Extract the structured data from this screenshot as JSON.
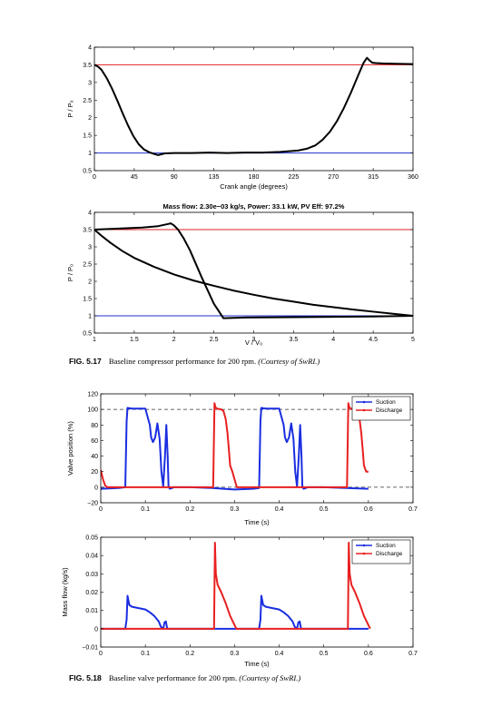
{
  "figures": [
    {
      "label": "FIG. 5.17",
      "caption_text": "Baseline compressor performance for 200 rpm.",
      "caption_courtesy": "(Courtesy of SwRI.)"
    },
    {
      "label": "FIG. 5.18",
      "caption_text": "Baseline valve performance for 200 rpm.",
      "caption_courtesy": "(Courtesy of SwRI.)"
    }
  ],
  "chart_data": [
    {
      "id": "p_vs_crank",
      "type": "line",
      "title": "",
      "xlabel": "Crank angle (degrees)",
      "ylabel": "P / P₀",
      "xlim": [
        0,
        360
      ],
      "ylim": [
        0.5,
        4
      ],
      "xticks": [
        0,
        45,
        90,
        135,
        180,
        225,
        270,
        315,
        360
      ],
      "xticklabels": [
        "0",
        "45",
        "90",
        "135",
        "180",
        "225",
        "270",
        "315",
        "360"
      ],
      "yticks": [
        0.5,
        1,
        1.5,
        2,
        2.5,
        3,
        3.5,
        4
      ],
      "yticklabels": [
        "0.5",
        "1",
        "1.5",
        "2",
        "2.5",
        "3",
        "3.5",
        "4"
      ],
      "grid": false,
      "series": [
        {
          "color": "#e02020",
          "width": 1,
          "x": [
            0,
            360
          ],
          "y": [
            3.5,
            3.5
          ]
        },
        {
          "color": "#1f2fd0",
          "width": 1,
          "x": [
            0,
            360
          ],
          "y": [
            1.0,
            1.0
          ]
        },
        {
          "color": "#000000",
          "width": 2,
          "x": [
            0,
            4,
            8,
            14,
            20,
            26,
            32,
            38,
            44,
            50,
            56,
            62,
            68,
            72,
            75,
            80,
            90,
            110,
            130,
            150,
            170,
            190,
            210,
            230,
            240,
            250,
            258,
            266,
            274,
            282,
            290,
            298,
            304,
            308,
            311,
            314,
            318,
            325,
            340,
            360
          ],
          "y": [
            3.5,
            3.45,
            3.36,
            3.12,
            2.82,
            2.48,
            2.12,
            1.78,
            1.48,
            1.25,
            1.1,
            1.02,
            0.97,
            0.94,
            0.96,
            0.99,
            1.0,
            1.0,
            1.01,
            1.0,
            1.01,
            1.01,
            1.03,
            1.07,
            1.12,
            1.22,
            1.38,
            1.6,
            1.9,
            2.28,
            2.72,
            3.2,
            3.55,
            3.7,
            3.62,
            3.56,
            3.55,
            3.54,
            3.53,
            3.52
          ]
        }
      ]
    },
    {
      "id": "pv_diagram",
      "type": "line",
      "title": "Mass flow: 2.30e−03 kg/s, Power: 33.1 kW, PV Eff: 97.2%",
      "xlabel": "V / V₀",
      "ylabel": "P / P₀",
      "xlim": [
        1,
        5
      ],
      "ylim": [
        0.5,
        4
      ],
      "xticks": [
        1,
        1.5,
        2,
        2.5,
        3,
        3.5,
        4,
        4.5,
        5
      ],
      "xticklabels": [
        "1",
        "1.5",
        "2",
        "2.5",
        "3",
        "3.5",
        "4",
        "4.5",
        "5"
      ],
      "yticks": [
        0.5,
        1,
        1.5,
        2,
        2.5,
        3,
        3.5,
        4
      ],
      "yticklabels": [
        "0.5",
        "1",
        "1.5",
        "2",
        "2.5",
        "3",
        "3.5",
        "4"
      ],
      "grid": false,
      "series": [
        {
          "color": "#e02020",
          "width": 1,
          "x": [
            1,
            5
          ],
          "y": [
            3.5,
            3.5
          ]
        },
        {
          "color": "#1f2fd0",
          "width": 1,
          "x": [
            1,
            5
          ],
          "y": [
            1.0,
            1.0
          ]
        },
        {
          "color": "#000000",
          "width": 2,
          "x": [
            1,
            1.2,
            1.4,
            1.6,
            1.8,
            1.9,
            1.96,
            2.0,
            2.05,
            2.12,
            2.2,
            2.35,
            2.5,
            2.62,
            2.9,
            3.5,
            4.0,
            4.5,
            5.0
          ],
          "y": [
            3.5,
            3.52,
            3.54,
            3.56,
            3.6,
            3.65,
            3.68,
            3.62,
            3.5,
            3.25,
            2.9,
            2.1,
            1.35,
            0.93,
            0.95,
            0.96,
            0.97,
            0.98,
            1.0
          ]
        },
        {
          "color": "#000000",
          "width": 2,
          "x": [
            1,
            1.1,
            1.2,
            1.35,
            1.5,
            1.75,
            2.0,
            2.25,
            2.5,
            2.75,
            3.0,
            3.25,
            3.5,
            3.75,
            4.0,
            4.25,
            4.5,
            4.75,
            5.0
          ],
          "y": [
            3.5,
            3.3,
            3.12,
            2.88,
            2.68,
            2.42,
            2.2,
            2.02,
            1.87,
            1.73,
            1.61,
            1.5,
            1.41,
            1.32,
            1.25,
            1.18,
            1.12,
            1.06,
            1.0
          ]
        }
      ]
    },
    {
      "id": "valve_position",
      "type": "line",
      "title": "",
      "xlabel": "Time (s)",
      "ylabel": "Valve position (%)",
      "xlim": [
        0,
        0.7
      ],
      "ylim": [
        -20,
        120
      ],
      "xticks": [
        0,
        0.1,
        0.2,
        0.3,
        0.4,
        0.5,
        0.6,
        0.7
      ],
      "xticklabels": [
        "0",
        "0.1",
        "0.2",
        "0.3",
        "0.4",
        "0.5",
        "0.6",
        "0.7"
      ],
      "yticks": [
        -20,
        0,
        20,
        40,
        60,
        80,
        100,
        120
      ],
      "yticklabels": [
        "−20",
        "0",
        "20",
        "40",
        "60",
        "80",
        "100",
        "120"
      ],
      "grid": false,
      "legend": {
        "position": "top-right",
        "entries": [
          "Suction",
          "Discharge"
        ]
      },
      "series": [
        {
          "color": "#333333",
          "width": 0.8,
          "dash": "4,3",
          "x": [
            0,
            0.7
          ],
          "y": [
            100,
            100
          ]
        },
        {
          "color": "#333333",
          "width": 0.8,
          "dash": "4,3",
          "x": [
            0,
            0.7
          ],
          "y": [
            0,
            0
          ]
        },
        {
          "name": "Suction",
          "color": "#1a2ee0",
          "width": 2,
          "x": [
            0,
            0.04,
            0.055,
            0.058,
            0.06,
            0.07,
            0.1,
            0.11,
            0.113,
            0.117,
            0.122,
            0.127,
            0.132,
            0.136,
            0.14,
            0.144,
            0.147,
            0.15,
            0.152,
            0.155,
            0.165,
            0.2,
            0.25,
            0.3,
            0.34,
            0.355,
            0.358,
            0.36,
            0.37,
            0.4,
            0.41,
            0.413,
            0.417,
            0.422,
            0.427,
            0.432,
            0.436,
            0.44,
            0.444,
            0.447,
            0.45,
            0.452,
            0.455,
            0.465,
            0.5,
            0.55,
            0.6
          ],
          "y": [
            -2,
            -1,
            0,
            85,
            102,
            101,
            101,
            80,
            64,
            58,
            64,
            82,
            62,
            20,
            1,
            40,
            80,
            40,
            0,
            -2,
            0,
            0,
            -1,
            -3,
            -2,
            -1,
            85,
            102,
            101,
            101,
            80,
            64,
            58,
            64,
            82,
            62,
            20,
            1,
            40,
            80,
            40,
            0,
            -2,
            0,
            0,
            -1,
            -2
          ]
        },
        {
          "name": "Discharge",
          "color": "#e82020",
          "width": 2,
          "x": [
            0,
            0.005,
            0.01,
            0.015,
            0.05,
            0.1,
            0.15,
            0.2,
            0.252,
            0.255,
            0.257,
            0.26,
            0.27,
            0.275,
            0.28,
            0.284,
            0.287,
            0.29,
            0.295,
            0.305,
            0.35,
            0.4,
            0.45,
            0.5,
            0.552,
            0.555,
            0.557,
            0.56,
            0.57,
            0.575,
            0.58,
            0.584,
            0.587,
            0.59,
            0.595,
            0.6
          ],
          "y": [
            22,
            10,
            2,
            0,
            0,
            0,
            0,
            0,
            0,
            108,
            103,
            101,
            100,
            98,
            88,
            70,
            50,
            28,
            20,
            0,
            0,
            0,
            0,
            0,
            0,
            108,
            103,
            101,
            100,
            98,
            88,
            70,
            50,
            28,
            20,
            20
          ]
        }
      ]
    },
    {
      "id": "mass_flow",
      "type": "line",
      "title": "",
      "xlabel": "Time (s)",
      "ylabel": "Mass flow (kg/s)",
      "xlim": [
        0,
        0.7
      ],
      "ylim": [
        -0.01,
        0.05
      ],
      "xticks": [
        0,
        0.1,
        0.2,
        0.3,
        0.4,
        0.5,
        0.6,
        0.7
      ],
      "xticklabels": [
        "0",
        "0.1",
        "0.2",
        "0.3",
        "0.4",
        "0.5",
        "0.6",
        "0.7"
      ],
      "yticks": [
        -0.01,
        0,
        0.01,
        0.02,
        0.03,
        0.04,
        0.05
      ],
      "yticklabels": [
        "−0.01",
        "0",
        "0.01",
        "0.02",
        "0.03",
        "0.04",
        "0.05"
      ],
      "grid": false,
      "legend": {
        "position": "top-right",
        "entries": [
          "Suction",
          "Discharge"
        ]
      },
      "series": [
        {
          "color": "#333333",
          "width": 0.8,
          "dash": "4,3",
          "x": [
            0,
            0.6
          ],
          "y": [
            0,
            0
          ]
        },
        {
          "name": "Suction",
          "color": "#1a2ee0",
          "width": 2,
          "x": [
            0,
            0.055,
            0.058,
            0.06,
            0.064,
            0.07,
            0.08,
            0.09,
            0.1,
            0.11,
            0.12,
            0.13,
            0.135,
            0.14,
            0.143,
            0.146,
            0.149,
            0.152,
            0.2,
            0.25,
            0.3,
            0.355,
            0.358,
            0.36,
            0.364,
            0.37,
            0.38,
            0.39,
            0.4,
            0.41,
            0.42,
            0.43,
            0.435,
            0.44,
            0.443,
            0.446,
            0.449,
            0.452,
            0.5,
            0.55,
            0.6
          ],
          "y": [
            0,
            0,
            0.005,
            0.018,
            0.013,
            0.012,
            0.0115,
            0.011,
            0.0105,
            0.009,
            0.007,
            0.004,
            0.001,
            0,
            0.0035,
            0.004,
            0,
            0,
            0,
            0,
            0,
            0,
            0.005,
            0.018,
            0.013,
            0.012,
            0.0115,
            0.011,
            0.0105,
            0.009,
            0.007,
            0.004,
            0.001,
            0,
            0.0035,
            0.004,
            0,
            0,
            0,
            0,
            0
          ]
        },
        {
          "name": "Discharge",
          "color": "#e82020",
          "width": 2,
          "x": [
            0,
            0.254,
            0.256,
            0.258,
            0.262,
            0.27,
            0.28,
            0.29,
            0.3,
            0.304,
            0.35,
            0.4,
            0.45,
            0.5,
            0.554,
            0.556,
            0.558,
            0.562,
            0.57,
            0.58,
            0.59,
            0.6,
            0.604
          ],
          "y": [
            0,
            0,
            0.047,
            0.03,
            0.024,
            0.02,
            0.014,
            0.007,
            0.002,
            0,
            0,
            0,
            0,
            0,
            0,
            0.047,
            0.03,
            0.024,
            0.02,
            0.014,
            0.007,
            0.002,
            0
          ]
        }
      ]
    }
  ]
}
